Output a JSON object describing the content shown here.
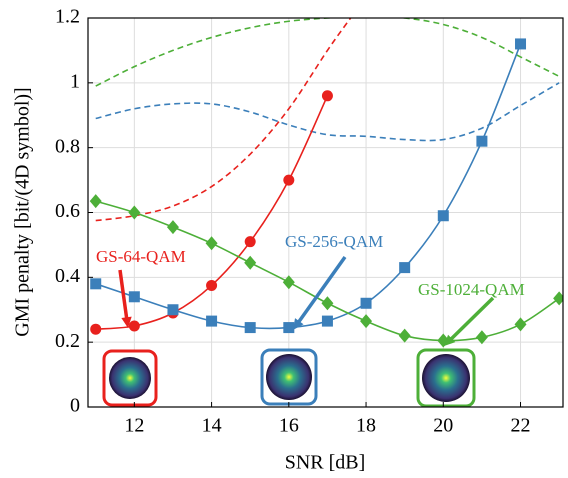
{
  "chart_data": {
    "type": "line",
    "xlabel": "SNR [dB]",
    "ylabel": "GMI penalty [bit/(4D symbol)]",
    "xlim": [
      10.8,
      23.1
    ],
    "ylim": [
      0,
      1.2
    ],
    "xticks": [
      12,
      14,
      16,
      18,
      20,
      22
    ],
    "yticks": [
      0,
      0.2,
      0.4,
      0.6,
      0.8,
      1,
      1.2
    ],
    "grid": true,
    "series": [
      {
        "color": "#e8211d",
        "dash": true,
        "x": [
          11,
          12,
          13,
          14,
          15,
          16,
          17,
          17.6
        ],
        "values": [
          0.575,
          0.59,
          0.62,
          0.68,
          0.78,
          0.92,
          1.1,
          1.2
        ]
      },
      {
        "color": "#3b7fba",
        "dash": true,
        "x": [
          11,
          12,
          13,
          14,
          15,
          16,
          17,
          18,
          19,
          20,
          21,
          22,
          23
        ],
        "values": [
          0.89,
          0.92,
          0.935,
          0.935,
          0.91,
          0.87,
          0.84,
          0.835,
          0.825,
          0.825,
          0.86,
          0.93,
          1.0
        ]
      },
      {
        "color": "#4daf38",
        "dash": true,
        "x": [
          11,
          12,
          13,
          14,
          15,
          16,
          17,
          18,
          19,
          20,
          21,
          22,
          23
        ],
        "values": [
          0.99,
          1.05,
          1.1,
          1.14,
          1.17,
          1.19,
          1.2,
          1.205,
          1.2,
          1.18,
          1.14,
          1.08,
          1.02
        ]
      },
      {
        "color": "#e8211d",
        "marker": "circle",
        "x": [
          11,
          12,
          13,
          14,
          15,
          16,
          17
        ],
        "values": [
          0.24,
          0.25,
          0.29,
          0.375,
          0.51,
          0.7,
          0.96
        ]
      },
      {
        "color": "#3b7fba",
        "marker": "square",
        "x": [
          11,
          12,
          13,
          14,
          15,
          16,
          17,
          18,
          19,
          20,
          21,
          22
        ],
        "values": [
          0.38,
          0.34,
          0.3,
          0.265,
          0.245,
          0.245,
          0.265,
          0.32,
          0.43,
          0.59,
          0.82,
          1.12
        ]
      },
      {
        "color": "#4daf38",
        "marker": "diamond",
        "x": [
          11,
          12,
          13,
          14,
          15,
          16,
          17,
          18,
          19,
          20,
          21,
          22,
          23
        ],
        "values": [
          0.635,
          0.6,
          0.555,
          0.505,
          0.445,
          0.385,
          0.32,
          0.265,
          0.22,
          0.205,
          0.215,
          0.255,
          0.335
        ]
      }
    ],
    "annotations": [
      {
        "text": "GS-64-QAM",
        "color": "#e8211d"
      },
      {
        "text": "GS-256-QAM",
        "color": "#3b7fba"
      },
      {
        "text": "GS-1024-QAM",
        "color": "#4daf38"
      }
    ]
  }
}
